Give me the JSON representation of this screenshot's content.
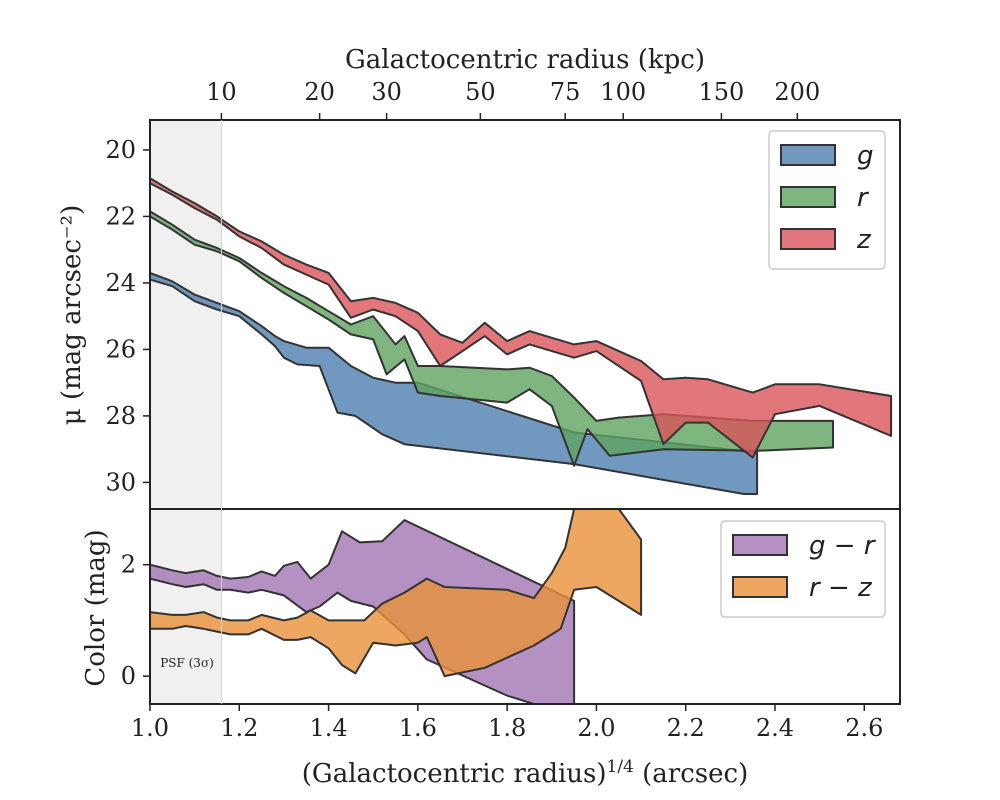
{
  "chart_data": [
    {
      "type": "area",
      "panel": "surface-brightness",
      "x_label_top": "Galactocentric radius (kpc)",
      "top_ticks": [
        {
          "label": "10",
          "x": 1.16
        },
        {
          "label": "20",
          "x": 1.38
        },
        {
          "label": "30",
          "x": 1.53
        },
        {
          "label": "50",
          "x": 1.74
        },
        {
          "label": "75",
          "x": 1.93
        },
        {
          "label": "100",
          "x": 2.06
        },
        {
          "label": "150",
          "x": 2.28
        },
        {
          "label": "200",
          "x": 2.45
        }
      ],
      "ylabel": "μ (mag arcsec⁻²)",
      "y_ticks": [
        "20",
        "22",
        "24",
        "26",
        "28",
        "30"
      ],
      "ylim": [
        30.8,
        19.1
      ],
      "xlim": [
        1.0,
        2.68
      ],
      "inverted_y": true,
      "legend_position": "top-right",
      "series": [
        {
          "name": "g",
          "color": "#4e7fb0",
          "upper": [
            [
              1.0,
              23.7
            ],
            [
              1.05,
              23.95
            ],
            [
              1.1,
              24.35
            ],
            [
              1.15,
              24.6
            ],
            [
              1.2,
              24.85
            ],
            [
              1.25,
              25.3
            ],
            [
              1.28,
              25.6
            ],
            [
              1.3,
              25.75
            ],
            [
              1.35,
              25.95
            ],
            [
              1.4,
              25.95
            ],
            [
              1.45,
              26.5
            ],
            [
              1.5,
              26.85
            ],
            [
              1.55,
              27.0
            ],
            [
              1.6,
              27.0
            ],
            [
              1.95,
              28.5
            ],
            [
              2.36,
              29.1
            ]
          ],
          "lower": [
            [
              1.0,
              23.9
            ],
            [
              1.05,
              24.1
            ],
            [
              1.1,
              24.55
            ],
            [
              1.15,
              24.8
            ],
            [
              1.2,
              25.0
            ],
            [
              1.25,
              25.55
            ],
            [
              1.28,
              25.9
            ],
            [
              1.3,
              26.25
            ],
            [
              1.33,
              26.45
            ],
            [
              1.38,
              26.5
            ],
            [
              1.42,
              27.9
            ],
            [
              1.46,
              28.0
            ],
            [
              1.52,
              28.55
            ],
            [
              1.57,
              28.85
            ],
            [
              1.95,
              29.45
            ],
            [
              2.33,
              30.35
            ],
            [
              2.36,
              30.35
            ]
          ]
        },
        {
          "name": "r",
          "color": "#5fa35f",
          "upper": [
            [
              1.0,
              21.85
            ],
            [
              1.05,
              22.25
            ],
            [
              1.1,
              22.7
            ],
            [
              1.15,
              22.95
            ],
            [
              1.2,
              23.25
            ],
            [
              1.25,
              23.7
            ],
            [
              1.3,
              24.1
            ],
            [
              1.35,
              24.45
            ],
            [
              1.4,
              24.85
            ],
            [
              1.45,
              25.25
            ],
            [
              1.5,
              25.0
            ],
            [
              1.55,
              25.85
            ],
            [
              1.57,
              25.6
            ],
            [
              1.6,
              26.5
            ],
            [
              1.65,
              26.5
            ],
            [
              1.8,
              26.6
            ],
            [
              1.85,
              26.55
            ],
            [
              1.9,
              26.8
            ],
            [
              1.95,
              27.45
            ],
            [
              2.0,
              28.15
            ],
            [
              2.05,
              28.05
            ],
            [
              2.15,
              27.95
            ],
            [
              2.3,
              28.1
            ],
            [
              2.35,
              28.15
            ],
            [
              2.53,
              28.15
            ]
          ],
          "lower": [
            [
              1.0,
              22.0
            ],
            [
              1.05,
              22.4
            ],
            [
              1.1,
              22.85
            ],
            [
              1.15,
              23.05
            ],
            [
              1.2,
              23.35
            ],
            [
              1.25,
              23.85
            ],
            [
              1.3,
              24.3
            ],
            [
              1.35,
              24.7
            ],
            [
              1.4,
              25.1
            ],
            [
              1.45,
              25.55
            ],
            [
              1.5,
              25.7
            ],
            [
              1.53,
              26.75
            ],
            [
              1.57,
              26.3
            ],
            [
              1.6,
              27.3
            ],
            [
              1.65,
              27.4
            ],
            [
              1.8,
              27.6
            ],
            [
              1.85,
              27.2
            ],
            [
              1.9,
              27.7
            ],
            [
              1.95,
              29.5
            ],
            [
              1.98,
              28.4
            ],
            [
              2.03,
              29.2
            ],
            [
              2.15,
              29.0
            ],
            [
              2.36,
              29.05
            ],
            [
              2.53,
              28.95
            ]
          ]
        },
        {
          "name": "z",
          "color": "#d9545a",
          "upper": [
            [
              1.0,
              20.85
            ],
            [
              1.05,
              21.25
            ],
            [
              1.1,
              21.6
            ],
            [
              1.15,
              22.0
            ],
            [
              1.2,
              22.45
            ],
            [
              1.25,
              22.75
            ],
            [
              1.3,
              23.15
            ],
            [
              1.35,
              23.45
            ],
            [
              1.4,
              23.7
            ],
            [
              1.45,
              24.55
            ],
            [
              1.5,
              24.45
            ],
            [
              1.55,
              24.6
            ],
            [
              1.6,
              24.9
            ],
            [
              1.65,
              25.55
            ],
            [
              1.7,
              25.8
            ],
            [
              1.75,
              25.2
            ],
            [
              1.8,
              25.75
            ],
            [
              1.85,
              25.45
            ],
            [
              1.9,
              25.65
            ],
            [
              1.95,
              25.85
            ],
            [
              2.0,
              25.75
            ],
            [
              2.1,
              26.35
            ],
            [
              2.15,
              26.9
            ],
            [
              2.2,
              26.85
            ],
            [
              2.25,
              26.9
            ],
            [
              2.35,
              27.3
            ],
            [
              2.4,
              27.05
            ],
            [
              2.5,
              27.05
            ],
            [
              2.66,
              27.4
            ]
          ],
          "lower": [
            [
              1.0,
              21.0
            ],
            [
              1.05,
              21.35
            ],
            [
              1.1,
              21.75
            ],
            [
              1.15,
              22.1
            ],
            [
              1.2,
              22.6
            ],
            [
              1.25,
              22.95
            ],
            [
              1.3,
              23.45
            ],
            [
              1.35,
              23.75
            ],
            [
              1.4,
              24.05
            ],
            [
              1.45,
              25.05
            ],
            [
              1.5,
              24.8
            ],
            [
              1.55,
              25.0
            ],
            [
              1.6,
              25.45
            ],
            [
              1.65,
              26.5
            ],
            [
              1.7,
              26.05
            ],
            [
              1.75,
              25.6
            ],
            [
              1.8,
              26.15
            ],
            [
              1.85,
              25.85
            ],
            [
              1.9,
              26.05
            ],
            [
              1.95,
              26.25
            ],
            [
              2.0,
              26.05
            ],
            [
              2.1,
              26.95
            ],
            [
              2.15,
              28.85
            ],
            [
              2.2,
              28.2
            ],
            [
              2.25,
              28.2
            ],
            [
              2.35,
              29.25
            ],
            [
              2.4,
              27.95
            ],
            [
              2.5,
              27.7
            ],
            [
              2.66,
              28.6
            ]
          ]
        }
      ]
    },
    {
      "type": "area",
      "panel": "color",
      "xlabel": "(Galactocentric radius)^1/4 (arcsec)",
      "x_ticks": [
        "1.0",
        "1.2",
        "1.4",
        "1.6",
        "1.8",
        "2.0",
        "2.2",
        "2.4",
        "2.6"
      ],
      "ylabel": "Color (mag)",
      "y_ticks": [
        "0",
        "2"
      ],
      "ylim": [
        -0.5,
        3.0
      ],
      "xlim": [
        1.0,
        2.68
      ],
      "legend_position": "top-right",
      "annotation": "PSF (3σ)",
      "psf_region": [
        1.0,
        1.16
      ],
      "series": [
        {
          "name": "g − r",
          "color": "#a374b3",
          "upper": [
            [
              1.0,
              2.0
            ],
            [
              1.05,
              1.9
            ],
            [
              1.08,
              1.85
            ],
            [
              1.12,
              1.9
            ],
            [
              1.15,
              1.8
            ],
            [
              1.18,
              1.75
            ],
            [
              1.22,
              1.78
            ],
            [
              1.25,
              1.88
            ],
            [
              1.28,
              1.8
            ],
            [
              1.3,
              1.98
            ],
            [
              1.33,
              2.05
            ],
            [
              1.36,
              1.75
            ],
            [
              1.4,
              2.0
            ],
            [
              1.43,
              2.6
            ],
            [
              1.47,
              2.4
            ],
            [
              1.52,
              2.42
            ],
            [
              1.57,
              2.8
            ],
            [
              1.95,
              1.35
            ]
          ],
          "lower": [
            [
              1.0,
              1.75
            ],
            [
              1.05,
              1.65
            ],
            [
              1.08,
              1.6
            ],
            [
              1.12,
              1.65
            ],
            [
              1.15,
              1.55
            ],
            [
              1.18,
              1.55
            ],
            [
              1.22,
              1.5
            ],
            [
              1.25,
              1.55
            ],
            [
              1.3,
              1.45
            ],
            [
              1.35,
              1.15
            ],
            [
              1.38,
              1.25
            ],
            [
              1.42,
              1.5
            ],
            [
              1.45,
              1.35
            ],
            [
              1.5,
              1.25
            ],
            [
              1.57,
              0.75
            ],
            [
              1.62,
              0.3
            ],
            [
              1.8,
              -0.35
            ],
            [
              1.86,
              -0.55
            ],
            [
              1.92,
              -0.55
            ],
            [
              1.95,
              -0.55
            ]
          ]
        },
        {
          "name": "r − z",
          "color": "#e8913a",
          "upper": [
            [
              1.0,
              1.15
            ],
            [
              1.05,
              1.1
            ],
            [
              1.08,
              1.1
            ],
            [
              1.12,
              1.15
            ],
            [
              1.15,
              1.05
            ],
            [
              1.18,
              1.0
            ],
            [
              1.22,
              1.0
            ],
            [
              1.25,
              1.1
            ],
            [
              1.3,
              1.0
            ],
            [
              1.33,
              1.05
            ],
            [
              1.36,
              1.18
            ],
            [
              1.4,
              1.0
            ],
            [
              1.42,
              1.0
            ],
            [
              1.48,
              1.0
            ],
            [
              1.52,
              1.3
            ],
            [
              1.57,
              1.5
            ],
            [
              1.62,
              1.75
            ],
            [
              1.66,
              1.6
            ],
            [
              1.8,
              1.55
            ],
            [
              1.86,
              1.4
            ],
            [
              1.9,
              1.85
            ],
            [
              1.93,
              2.3
            ],
            [
              1.95,
              3.0
            ],
            [
              2.05,
              3.0
            ],
            [
              2.1,
              2.45
            ],
            [
              2.1,
              1.1
            ]
          ],
          "lower": [
            [
              1.0,
              0.85
            ],
            [
              1.05,
              0.85
            ],
            [
              1.08,
              0.9
            ],
            [
              1.12,
              0.85
            ],
            [
              1.15,
              0.8
            ],
            [
              1.18,
              0.75
            ],
            [
              1.22,
              0.75
            ],
            [
              1.25,
              0.85
            ],
            [
              1.3,
              0.65
            ],
            [
              1.33,
              0.65
            ],
            [
              1.36,
              0.7
            ],
            [
              1.4,
              0.5
            ],
            [
              1.43,
              0.2
            ],
            [
              1.46,
              0.05
            ],
            [
              1.5,
              0.6
            ],
            [
              1.55,
              0.55
            ],
            [
              1.6,
              0.6
            ],
            [
              1.62,
              0.7
            ],
            [
              1.66,
              0.0
            ],
            [
              1.75,
              0.15
            ],
            [
              1.86,
              0.55
            ],
            [
              1.92,
              0.85
            ],
            [
              1.95,
              1.55
            ],
            [
              2.0,
              1.6
            ],
            [
              2.1,
              1.1
            ]
          ]
        }
      ]
    }
  ]
}
